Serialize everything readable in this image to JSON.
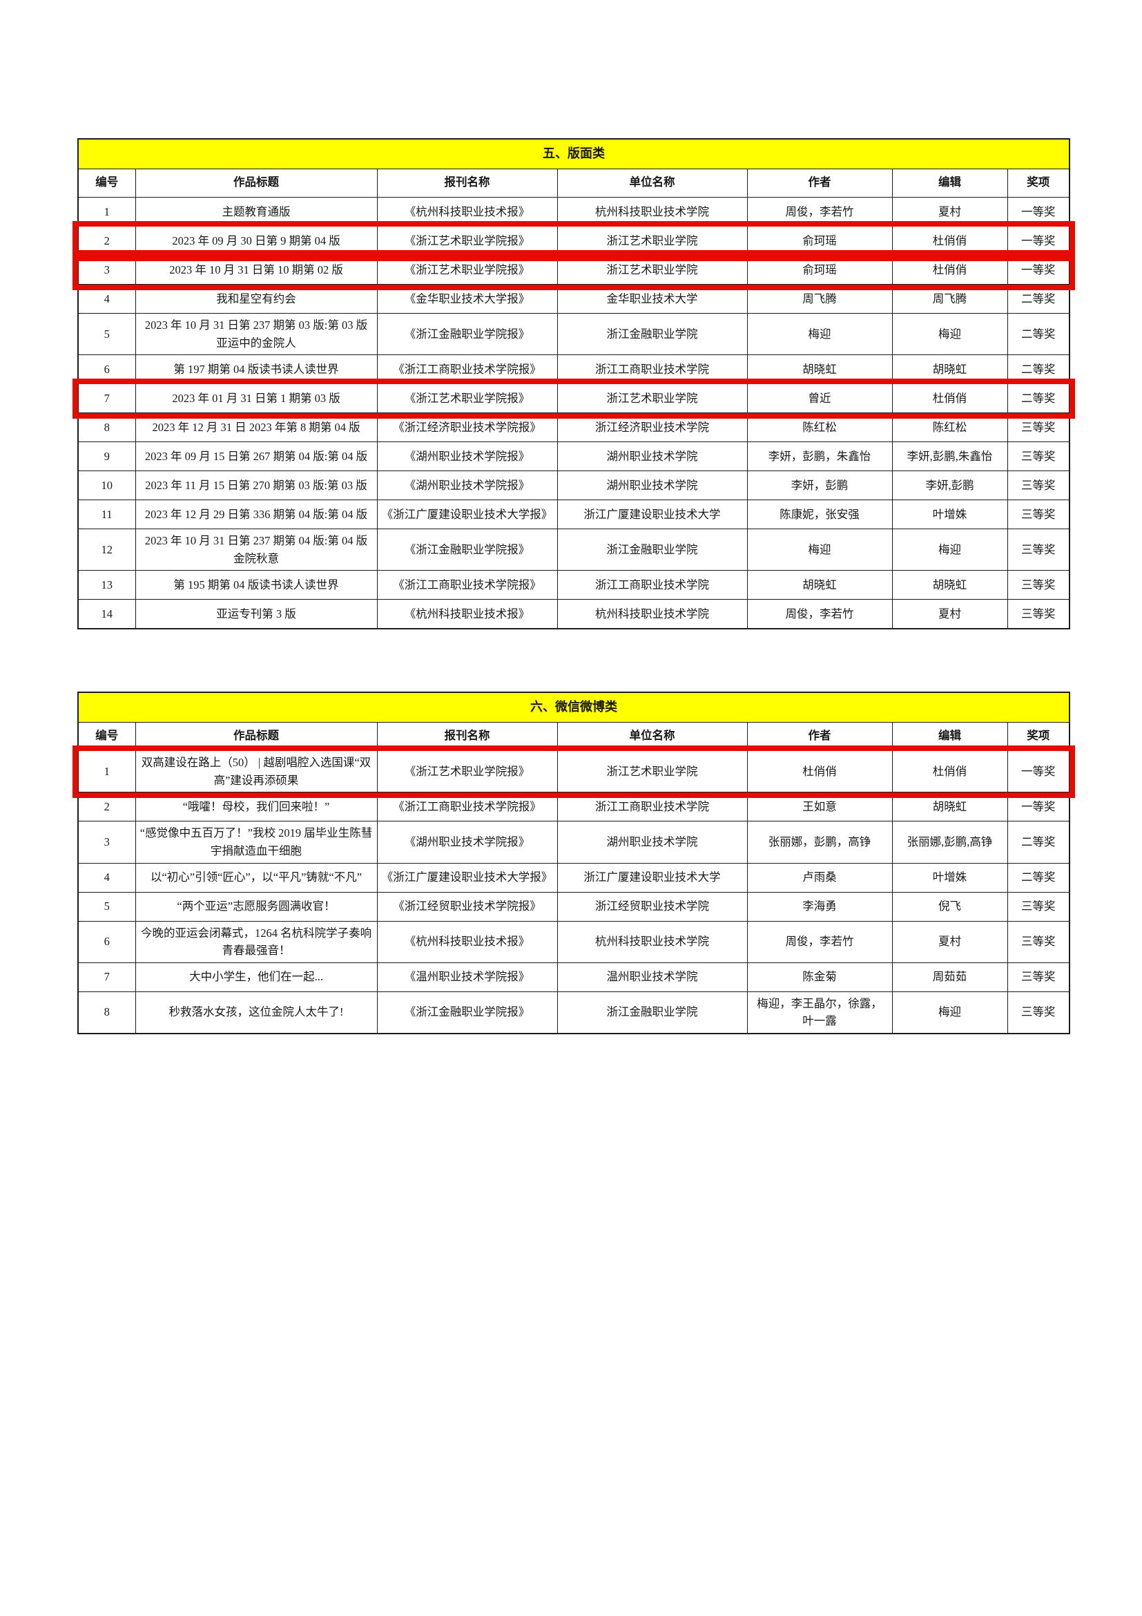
{
  "colors": {
    "section_header_bg": "#ffff00",
    "highlight_box": "#e50b00",
    "border": "#1b1b1b",
    "text": "#1a1a1a"
  },
  "columns": [
    "编号",
    "作品标题",
    "报刊名称",
    "单位名称",
    "作者",
    "编辑",
    "奖项"
  ],
  "tables": [
    {
      "title": "五、版面类",
      "rows": [
        {
          "num": "1",
          "title": "主题教育通版",
          "paper": "《杭州科技职业技术报》",
          "org": "杭州科技职业技术学院",
          "author": "周俊，李若竹",
          "editor": "夏村",
          "award": "一等奖",
          "highlight": false
        },
        {
          "num": "2",
          "title": "2023 年 09 月 30 日第 9 期第 04 版",
          "paper": "《浙江艺术职业学院报》",
          "org": "浙江艺术职业学院",
          "author": "俞珂瑶",
          "editor": "杜俏俏",
          "award": "一等奖",
          "highlight": true
        },
        {
          "num": "3",
          "title": "2023 年 10 月 31 日第 10 期第 02 版",
          "paper": "《浙江艺术职业学院报》",
          "org": "浙江艺术职业学院",
          "author": "俞珂瑶",
          "editor": "杜俏俏",
          "award": "一等奖",
          "highlight": true
        },
        {
          "num": "4",
          "title": "我和星空有约会",
          "paper": "《金华职业技术大学报》",
          "org": "金华职业技术大学",
          "author": "周飞腾",
          "editor": "周飞腾",
          "award": "二等奖",
          "highlight": false
        },
        {
          "num": "5",
          "title": "2023 年 10 月 31 日第 237 期第 03 版:第 03 版　亚运中的金院人",
          "paper": "《浙江金融职业学院报》",
          "org": "浙江金融职业学院",
          "author": "梅迎",
          "editor": "梅迎",
          "award": "二等奖",
          "highlight": false
        },
        {
          "num": "6",
          "title": "第 197 期第 04 版读书读人读世界",
          "paper": "《浙江工商职业技术学院报》",
          "org": "浙江工商职业技术学院",
          "author": "胡晓虹",
          "editor": "胡晓虹",
          "award": "二等奖",
          "highlight": false
        },
        {
          "num": "7",
          "title": "2023 年 01 月 31 日第 1 期第 03 版",
          "paper": "《浙江艺术职业学院报》",
          "org": "浙江艺术职业学院",
          "author": "曾近",
          "editor": "杜俏俏",
          "award": "二等奖",
          "highlight": true
        },
        {
          "num": "8",
          "title": "2023 年 12 月 31 日 2023 年第 8 期第 04 版",
          "paper": "《浙江经济职业技术学院报》",
          "org": "浙江经济职业技术学院",
          "author": "陈红松",
          "editor": "陈红松",
          "award": "三等奖",
          "highlight": false
        },
        {
          "num": "9",
          "title": "2023 年 09 月 15 日第 267 期第 04 版:第 04 版",
          "paper": "《湖州职业技术学院报》",
          "org": "湖州职业技术学院",
          "author": "李妍，彭鹏，朱鑫怡",
          "editor": "李妍,彭鹏,朱鑫怡",
          "award": "三等奖",
          "highlight": false
        },
        {
          "num": "10",
          "title": "2023 年 11 月 15 日第 270 期第 03 版:第 03 版",
          "paper": "《湖州职业技术学院报》",
          "org": "湖州职业技术学院",
          "author": "李妍，彭鹏",
          "editor": "李妍,彭鹏",
          "award": "三等奖",
          "highlight": false
        },
        {
          "num": "11",
          "title": "2023 年 12 月 29 日第 336 期第 04 版:第 04 版",
          "paper": "《浙江广厦建设职业技术大学报》",
          "org": "浙江广厦建设职业技术大学",
          "author": "陈康妮，张安强",
          "editor": "叶增姝",
          "award": "三等奖",
          "highlight": false
        },
        {
          "num": "12",
          "title": "2023 年 10 月 31 日第 237 期第 04 版:第 04 版　金院秋意",
          "paper": "《浙江金融职业学院报》",
          "org": "浙江金融职业学院",
          "author": "梅迎",
          "editor": "梅迎",
          "award": "三等奖",
          "highlight": false
        },
        {
          "num": "13",
          "title": "第 195 期第 04 版读书读人读世界",
          "paper": "《浙江工商职业技术学院报》",
          "org": "浙江工商职业技术学院",
          "author": "胡晓虹",
          "editor": "胡晓虹",
          "award": "三等奖",
          "highlight": false
        },
        {
          "num": "14",
          "title": "亚运专刊第 3 版",
          "paper": "《杭州科技职业技术报》",
          "org": "杭州科技职业技术学院",
          "author": "周俊，李若竹",
          "editor": "夏村",
          "award": "三等奖",
          "highlight": false
        }
      ]
    },
    {
      "title": "六、微信微博类",
      "rows": [
        {
          "num": "1",
          "title": "双高建设在路上（50） | 越剧唱腔入选国课“双高”建设再添硕果",
          "paper": "《浙江艺术职业学院报》",
          "org": "浙江艺术职业学院",
          "author": "杜俏俏",
          "editor": "杜俏俏",
          "award": "一等奖",
          "highlight": true
        },
        {
          "num": "2",
          "title": "“哦嚯！母校，我们回来啦！”",
          "paper": "《浙江工商职业技术学院报》",
          "org": "浙江工商职业技术学院",
          "author": "王如意",
          "editor": "胡晓虹",
          "award": "一等奖",
          "highlight": false
        },
        {
          "num": "3",
          "title": "“感觉像中五百万了！”我校 2019 届毕业生陈彗宇捐献造血干细胞",
          "paper": "《湖州职业技术学院报》",
          "org": "湖州职业技术学院",
          "author": "张丽娜，彭鹏，高铮",
          "editor": "张丽娜,彭鹏,高铮",
          "award": "二等奖",
          "highlight": false
        },
        {
          "num": "4",
          "title": "以“初心”引领“匠心”，以“平凡”铸就“不凡”",
          "paper": "《浙江广厦建设职业技术大学报》",
          "org": "浙江广厦建设职业技术大学",
          "author": "卢雨桑",
          "editor": "叶增姝",
          "award": "二等奖",
          "highlight": false
        },
        {
          "num": "5",
          "title": "“两个亚运”志愿服务圆满收官！",
          "paper": "《浙江经贸职业技术学院报》",
          "org": "浙江经贸职业技术学院",
          "author": "李海勇",
          "editor": "倪飞",
          "award": "三等奖",
          "highlight": false
        },
        {
          "num": "6",
          "title": "今晚的亚运会闭幕式，1264 名杭科院学子奏响青春最强音！",
          "paper": "《杭州科技职业技术报》",
          "org": "杭州科技职业技术学院",
          "author": "周俊，李若竹",
          "editor": "夏村",
          "award": "三等奖",
          "highlight": false
        },
        {
          "num": "7",
          "title": "大中小学生，他们在一起...",
          "paper": "《温州职业技术学院报》",
          "org": "温州职业技术学院",
          "author": "陈金菊",
          "editor": "周茹茹",
          "award": "三等奖",
          "highlight": false
        },
        {
          "num": "8",
          "title": "秒救落水女孩，这位金院人太牛了!",
          "paper": "《浙江金融职业学院报》",
          "org": "浙江金融职业学院",
          "author": "梅迎，李王晶尔，徐露，叶一露",
          "editor": "梅迎",
          "award": "三等奖",
          "highlight": false
        }
      ]
    }
  ]
}
